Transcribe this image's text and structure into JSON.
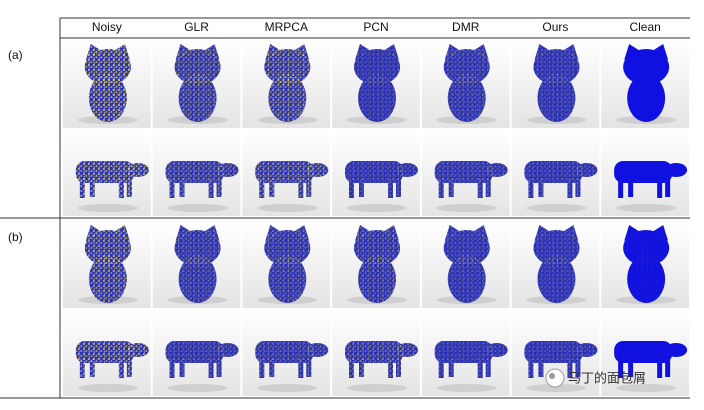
{
  "header": {
    "columns": [
      "Noisy",
      "GLR",
      "MRPCA",
      "PCN",
      "DMR",
      "Ours",
      "Clean"
    ]
  },
  "rows": [
    {
      "label": "(a)"
    },
    {
      "label": "(b)"
    }
  ],
  "watermark": "马丁的面包屑"
}
